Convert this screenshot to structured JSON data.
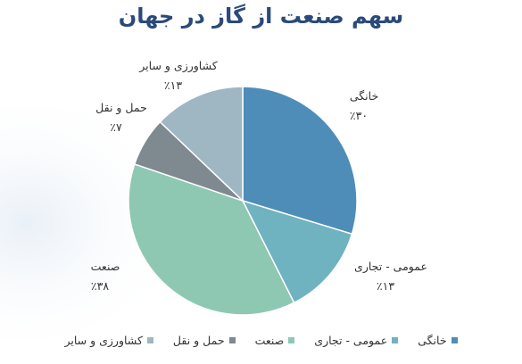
{
  "chart_data": {
    "type": "pie",
    "title": "سهم صنعت از گاز در جهان",
    "slices": [
      {
        "name": "خانگی",
        "value": 30,
        "label": "٪۳۰",
        "color": "#4e8db8"
      },
      {
        "name": "عمومی - تجاری",
        "value": 13,
        "label": "٪۱۳",
        "color": "#6fb2c0"
      },
      {
        "name": "صنعت",
        "value": 38,
        "label": "٪۳۸",
        "color": "#8ec8b3"
      },
      {
        "name": "حمل و نقل",
        "value": 7,
        "label": "٪۷",
        "color": "#7f8a90"
      },
      {
        "name": "کشاورزی و سایر",
        "value": 13,
        "label": "٪۱۳",
        "color": "#9fb6c3"
      }
    ],
    "legend": "bottom"
  }
}
